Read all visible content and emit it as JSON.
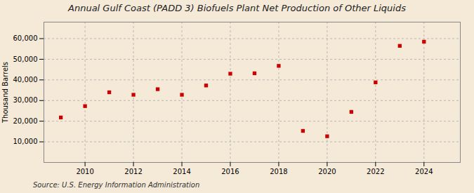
{
  "chart_data": {
    "type": "scatter",
    "title": "Annual Gulf Coast (PADD 3) Biofuels Plant Net Production of Other Liquids",
    "ylabel": "Thousand Barrels",
    "annotations": [
      "Source: U.S. Energy Information Administration"
    ],
    "x": [
      2009,
      2010,
      2011,
      2012,
      2013,
      2014,
      2015,
      2016,
      2017,
      2018,
      2019,
      2020,
      2021,
      2022,
      2023,
      2024
    ],
    "values": [
      21800,
      27300,
      34000,
      32800,
      35500,
      32800,
      37300,
      43000,
      43200,
      46800,
      15300,
      12700,
      24500,
      38800,
      56500,
      58500
    ],
    "color": "#cc0000",
    "marker": "square",
    "xlim": [
      2008.3,
      2025.5
    ],
    "xticks": [
      2010,
      2012,
      2014,
      2016,
      2018,
      2020,
      2022,
      2024
    ],
    "ylim": [
      0,
      68000
    ],
    "yticks": [
      {
        "value": 10000,
        "label": "10,000"
      },
      {
        "value": 20000,
        "label": "20,000"
      },
      {
        "value": 30000,
        "label": "30,000"
      },
      {
        "value": 40000,
        "label": "40,000"
      },
      {
        "value": 50000,
        "label": "50,000"
      },
      {
        "value": 60000,
        "label": "60,000"
      }
    ],
    "grid": true
  }
}
